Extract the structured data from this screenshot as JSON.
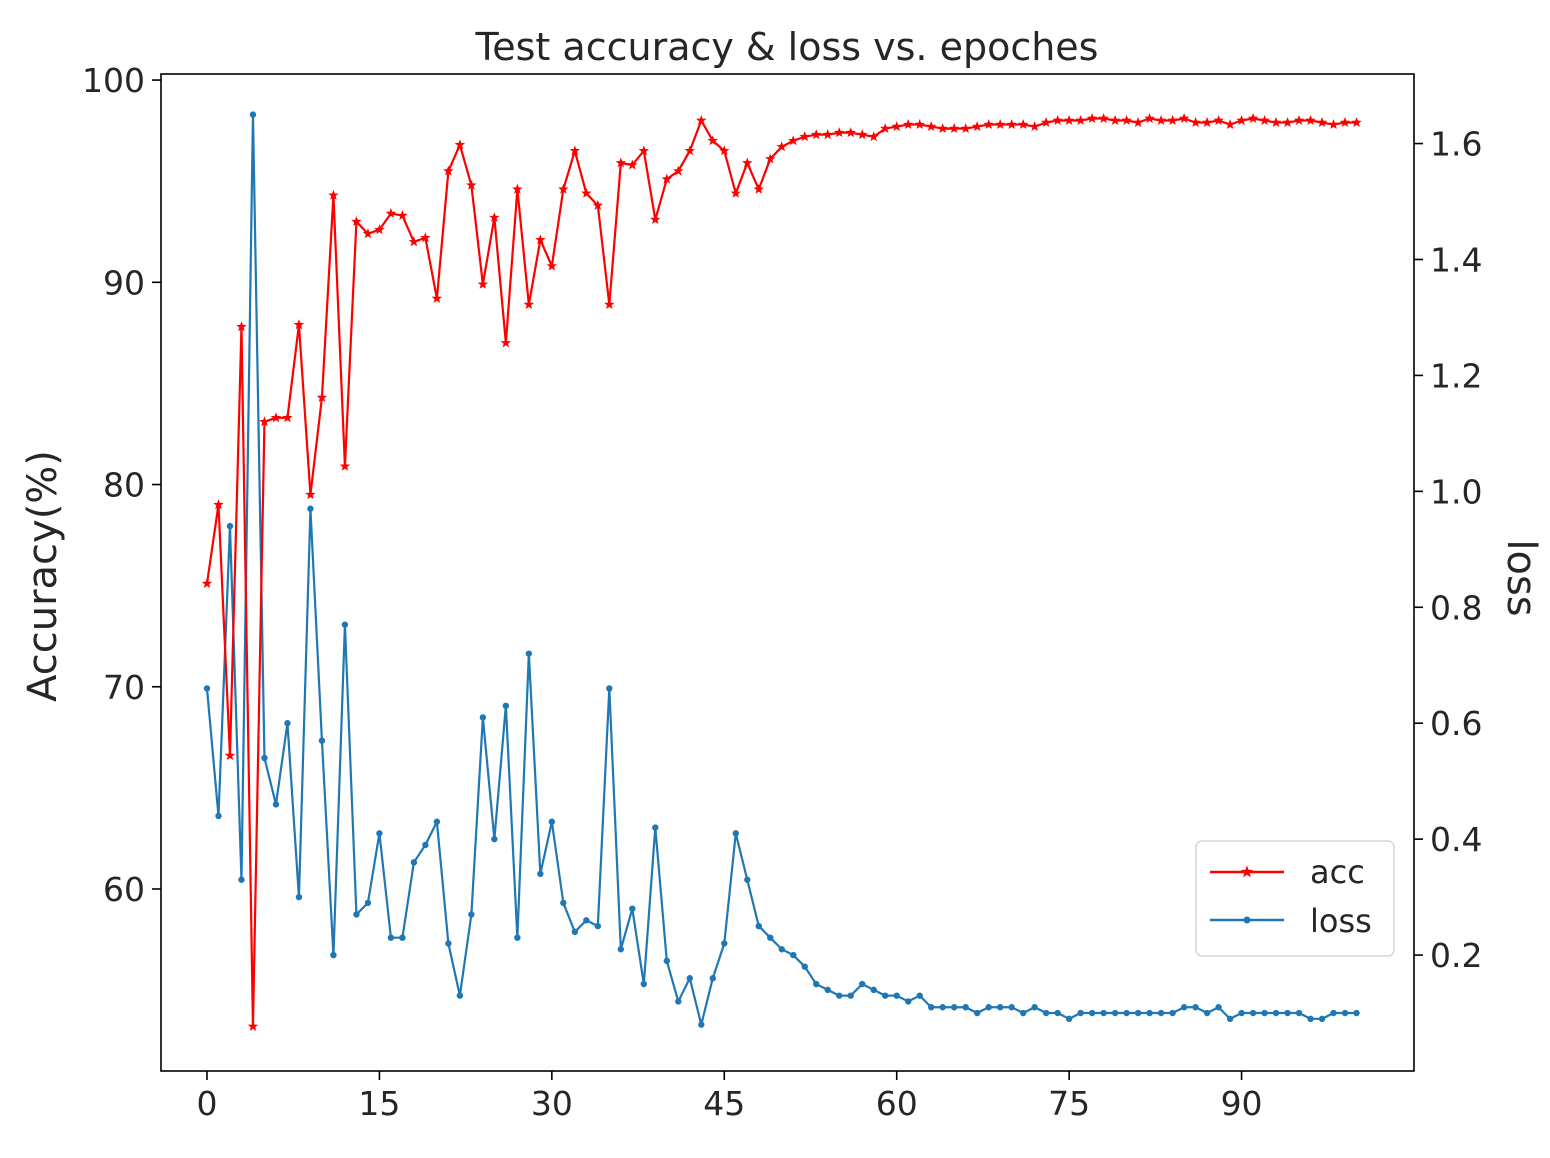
{
  "chart_data": {
    "type": "line",
    "title": "Test accuracy & loss vs. epoches",
    "xlabel": "",
    "ylabel_left": "Accuracy(%)",
    "ylabel_right": "loss",
    "xlim": [
      -4,
      105
    ],
    "ylim_left": [
      51,
      100.3
    ],
    "ylim_right": [
      0.0,
      1.72
    ],
    "x_ticks": [
      0,
      15,
      30,
      45,
      60,
      75,
      90
    ],
    "y_ticks_left": [
      60,
      70,
      80,
      90,
      100
    ],
    "y_ticks_right": [
      0.2,
      0.4,
      0.6,
      0.8,
      1.0,
      1.2,
      1.4,
      1.6
    ],
    "y_tick_labels_right": [
      "0.2",
      "0.4",
      "0.6",
      "0.8",
      "1.0",
      "1.2",
      "1.4",
      "1.6"
    ],
    "grid": false,
    "legend_position": "lower-right",
    "series": [
      {
        "name": "acc",
        "axis": "left",
        "color": "#ff0000",
        "marker": "star",
        "values": [
          75.1,
          79.0,
          66.6,
          87.8,
          53.2,
          83.1,
          83.3,
          83.3,
          87.9,
          79.5,
          84.3,
          94.3,
          80.9,
          93.0,
          92.4,
          92.6,
          93.4,
          93.3,
          92.0,
          92.2,
          89.2,
          95.5,
          96.8,
          94.8,
          89.9,
          93.2,
          87.0,
          94.6,
          88.9,
          92.1,
          90.8,
          94.6,
          96.5,
          94.4,
          93.8,
          88.9,
          95.9,
          95.8,
          96.5,
          93.1,
          95.1,
          95.5,
          96.5,
          98.0,
          97.0,
          96.5,
          94.4,
          95.9,
          94.6,
          96.1,
          96.7,
          97.0,
          97.2,
          97.3,
          97.3,
          97.4,
          97.4,
          97.3,
          97.2,
          97.6,
          97.7,
          97.8,
          97.8,
          97.7,
          97.6,
          97.6,
          97.6,
          97.7,
          97.8,
          97.8,
          97.8,
          97.8,
          97.7,
          97.9,
          98.0,
          98.0,
          98.0,
          98.1,
          98.1,
          98.0,
          98.0,
          97.9,
          98.1,
          98.0,
          98.0,
          98.1,
          97.9,
          97.9,
          98.0,
          97.8,
          98.0,
          98.1,
          98.0,
          97.9,
          97.9,
          98.0,
          98.0,
          97.9,
          97.8,
          97.9,
          97.9
        ]
      },
      {
        "name": "loss",
        "axis": "right",
        "color": "#1f77b4",
        "marker": "dot",
        "values": [
          0.66,
          0.44,
          0.94,
          0.33,
          1.65,
          0.54,
          0.46,
          0.6,
          0.3,
          0.97,
          0.57,
          0.2,
          0.77,
          0.27,
          0.29,
          0.41,
          0.23,
          0.23,
          0.36,
          0.39,
          0.43,
          0.22,
          0.13,
          0.27,
          0.61,
          0.4,
          0.63,
          0.23,
          0.72,
          0.34,
          0.43,
          0.29,
          0.24,
          0.26,
          0.25,
          0.66,
          0.21,
          0.28,
          0.15,
          0.42,
          0.19,
          0.12,
          0.16,
          0.08,
          0.16,
          0.22,
          0.41,
          0.33,
          0.25,
          0.23,
          0.21,
          0.2,
          0.18,
          0.15,
          0.14,
          0.13,
          0.13,
          0.15,
          0.14,
          0.13,
          0.13,
          0.12,
          0.13,
          0.11,
          0.11,
          0.11,
          0.11,
          0.1,
          0.11,
          0.11,
          0.11,
          0.1,
          0.11,
          0.1,
          0.1,
          0.09,
          0.1,
          0.1,
          0.1,
          0.1,
          0.1,
          0.1,
          0.1,
          0.1,
          0.1,
          0.11,
          0.11,
          0.1,
          0.11,
          0.09,
          0.1,
          0.1,
          0.1,
          0.1,
          0.1,
          0.1,
          0.09,
          0.09,
          0.1,
          0.1,
          0.1
        ]
      }
    ]
  }
}
